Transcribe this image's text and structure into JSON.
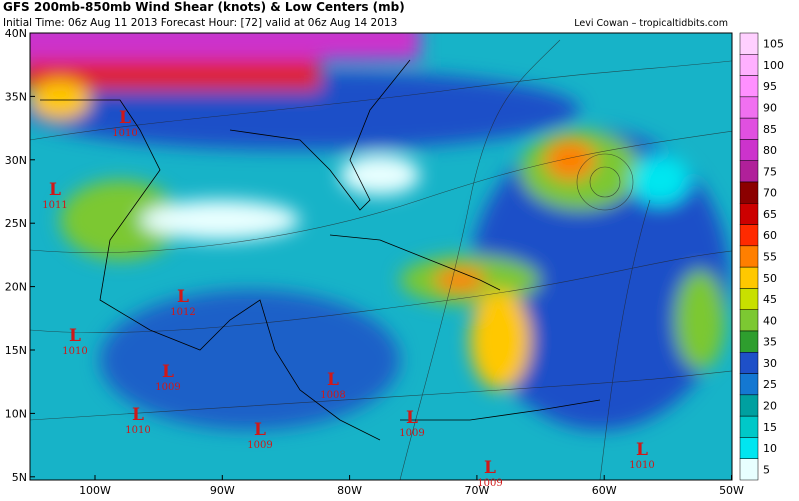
{
  "header": {
    "title": "GFS 200mb-850mb Wind Shear (knots) & Low Centers (mb)",
    "subtitle": "Initial Time: 06z Aug 11 2013 Forecast Hour: [72] valid at 06z Aug 14 2013",
    "credit": "Levi Cowan – tropicaltidbits.com"
  },
  "map": {
    "lat_labels": [
      "40N",
      "35N",
      "30N",
      "25N",
      "20N",
      "15N",
      "10N",
      "5N"
    ],
    "lon_labels": [
      "100W",
      "90W",
      "80W",
      "70W",
      "60W",
      "50W"
    ],
    "lows": [
      {
        "symbol": "L",
        "pressure": 1010
      },
      {
        "symbol": "L",
        "pressure": 1011
      },
      {
        "symbol": "L",
        "pressure": 1012
      },
      {
        "symbol": "L",
        "pressure": 1010
      },
      {
        "symbol": "L",
        "pressure": 1009
      },
      {
        "symbol": "L",
        "pressure": 1010
      },
      {
        "symbol": "L",
        "pressure": 1009
      },
      {
        "symbol": "L",
        "pressure": 1008
      },
      {
        "symbol": "L",
        "pressure": 1009
      },
      {
        "symbol": "L",
        "pressure": 1009
      },
      {
        "symbol": "L",
        "pressure": 1010
      }
    ]
  },
  "colorbar": {
    "ticks": [
      105,
      100,
      95,
      90,
      85,
      80,
      75,
      70,
      65,
      60,
      55,
      50,
      45,
      40,
      35,
      30,
      25,
      20,
      15,
      10,
      5
    ],
    "colors": [
      "#ffd0ff",
      "#ffb0ff",
      "#ff90ff",
      "#f070f0",
      "#e050e0",
      "#cc33cc",
      "#b0209a",
      "#8b0000",
      "#cc0000",
      "#ff2a00",
      "#ff7f00",
      "#ffc800",
      "#c8e000",
      "#7cc832",
      "#2e9e2e",
      "#1e50c8",
      "#1478d2",
      "#00a0a0",
      "#00c8c8",
      "#00e6f0",
      "#e8ffff"
    ]
  }
}
